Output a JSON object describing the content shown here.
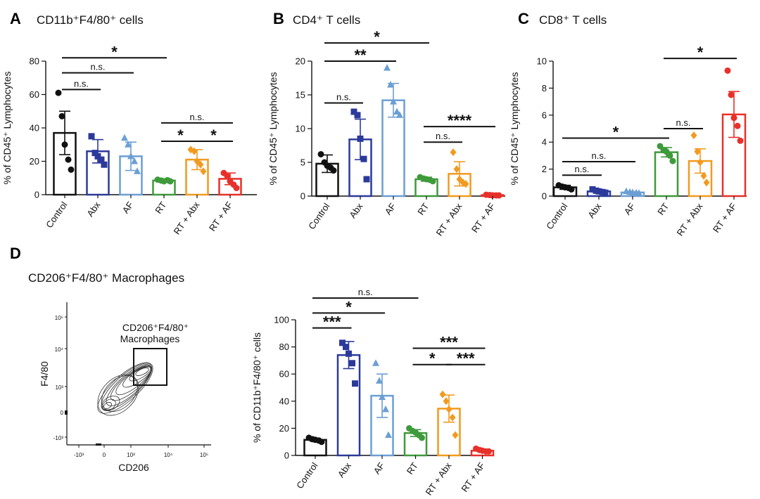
{
  "colors": {
    "Control": "#111111",
    "Abx": "#2b3a9a",
    "AF": "#6b9fd4",
    "RT": "#3e9a3a",
    "RT + Abx": "#f29a1f",
    "RT + AF": "#e8302a"
  },
  "chart_data": [
    {
      "id": "A",
      "panel_label": "A",
      "type": "bar",
      "title": "CD11b⁺F4/80⁺ cells",
      "ylabel": "% of CD45⁺ Lymphocytes",
      "categories": [
        "Control",
        "Abx",
        "AF",
        "RT",
        "RT + Abx",
        "RT + AF"
      ],
      "values": [
        37,
        26,
        23,
        8.5,
        21,
        9.5
      ],
      "sem": [
        13,
        7,
        8.5,
        0.8,
        6,
        3.5
      ],
      "points": [
        [
          61,
          47,
          30,
          21,
          15
        ],
        [
          35,
          25,
          23,
          21,
          18
        ],
        [
          34,
          30,
          23,
          20,
          14
        ],
        [
          9,
          8.5,
          8,
          8.7,
          8
        ],
        [
          27,
          26,
          20,
          18,
          14
        ],
        [
          13,
          11,
          8,
          6,
          4
        ]
      ],
      "ylim": [
        0,
        80
      ],
      "yticks": [
        0,
        20,
        40,
        60,
        80
      ],
      "comparisons": [
        {
          "from": 0,
          "to": 3,
          "label": "*",
          "y": 82
        },
        {
          "from": 0,
          "to": 2,
          "label": "n.s.",
          "y": 73
        },
        {
          "from": 0,
          "to": 1,
          "label": "n.s.",
          "y": 63
        },
        {
          "from": 3,
          "to": 5,
          "label": "n.s.",
          "y": 43
        },
        {
          "from": 3,
          "to": 4,
          "label": "*",
          "y": 32
        },
        {
          "from": 4,
          "to": 5,
          "label": "*",
          "y": 32
        }
      ]
    },
    {
      "id": "B",
      "panel_label": "B",
      "type": "bar",
      "title": "CD4⁺ T cells",
      "ylabel": "% of CD45⁺ Lymphocytes",
      "categories": [
        "Control",
        "Abx",
        "AF",
        "RT",
        "RT + Abx",
        "RT + AF"
      ],
      "values": [
        4.8,
        8.4,
        14.2,
        2.5,
        3.3,
        0.15
      ],
      "sem": [
        1.3,
        3.0,
        2.5,
        0.3,
        1.8,
        0.05
      ],
      "points": [
        [
          6.2,
          5.0,
          4.5,
          4.2,
          3.8
        ],
        [
          12.5,
          12.0,
          8.5,
          5.5,
          2.5
        ],
        [
          19.0,
          16.5,
          14.0,
          12.5,
          12.0
        ],
        [
          2.8,
          2.6,
          2.5,
          2.4,
          2.2
        ],
        [
          6.5,
          4.0,
          2.5,
          2.0,
          1.8
        ],
        [
          0.2,
          0.15,
          0.12,
          0.1,
          0.1
        ]
      ],
      "ylim": [
        0,
        20
      ],
      "yticks": [
        0,
        5,
        10,
        15,
        20
      ],
      "comparisons": [
        {
          "from": 0,
          "to": 3,
          "label": "*",
          "y": 22.7
        },
        {
          "from": 0,
          "to": 2,
          "label": "**",
          "y": 20.0
        },
        {
          "from": 0,
          "to": 1,
          "label": "n.s.",
          "y": 13.8
        },
        {
          "from": 3,
          "to": 5,
          "label": "****",
          "y": 10.3
        },
        {
          "from": 3,
          "to": 4,
          "label": "n.s.",
          "y": 8.0
        }
      ]
    },
    {
      "id": "C",
      "panel_label": "C",
      "type": "bar",
      "title": "CD8⁺ T cells",
      "ylabel": "% of CD45⁺ Lymphocytes",
      "categories": [
        "Control",
        "Abx",
        "AF",
        "RT",
        "RT + Abx",
        "RT + AF"
      ],
      "values": [
        0.65,
        0.35,
        0.27,
        3.25,
        2.6,
        6.05
      ],
      "sem": [
        0.15,
        0.08,
        0.05,
        0.35,
        0.9,
        1.7
      ],
      "points": [
        [
          0.8,
          0.7,
          0.65,
          0.6,
          0.5
        ],
        [
          0.5,
          0.4,
          0.35,
          0.3,
          0.25
        ],
        [
          0.35,
          0.3,
          0.27,
          0.25,
          0.22
        ],
        [
          3.7,
          3.4,
          3.3,
          3.0,
          2.6
        ],
        [
          4.5,
          3.3,
          2.5,
          1.5,
          1.0
        ],
        [
          9.3,
          7.5,
          5.8,
          5.2,
          4.1
        ]
      ],
      "ylim": [
        0,
        10
      ],
      "yticks": [
        0,
        2,
        4,
        6,
        8,
        10
      ],
      "comparisons": [
        {
          "from": 3,
          "to": 5,
          "label": "*",
          "y": 10.2
        },
        {
          "from": 0,
          "to": 3,
          "label": "*",
          "y": 4.3
        },
        {
          "from": 3,
          "to": 4,
          "label": "n.s.",
          "y": 5.0
        },
        {
          "from": 0,
          "to": 2,
          "label": "n.s.",
          "y": 2.55
        },
        {
          "from": 0,
          "to": 1,
          "label": "n.s.",
          "y": 1.55
        }
      ]
    },
    {
      "id": "D",
      "panel_label": "",
      "type": "bar",
      "title": "",
      "ylabel": "% of CD11b⁺F4/80⁺ cells",
      "categories": [
        "Control",
        "Abx",
        "AF",
        "RT",
        "RT + Abx",
        "RT + AF"
      ],
      "values": [
        11.5,
        74,
        44,
        16.5,
        34.5,
        3.5
      ],
      "sem": [
        1.0,
        10,
        16,
        2.5,
        10,
        0.5
      ],
      "points": [
        [
          13,
          12,
          11.5,
          11,
          10
        ],
        [
          83,
          80,
          75,
          68,
          53
        ],
        [
          68,
          55,
          43,
          34,
          15
        ],
        [
          20,
          18,
          17,
          15,
          13
        ],
        [
          45,
          40,
          34,
          28,
          15
        ],
        [
          5,
          4,
          3.5,
          3,
          3
        ]
      ],
      "ylim": [
        0,
        100
      ],
      "yticks": [
        0,
        20,
        40,
        60,
        80,
        100
      ],
      "comparisons": [
        {
          "from": 0,
          "to": 3,
          "label": "n.s.",
          "y": 116
        },
        {
          "from": 0,
          "to": 2,
          "label": "*",
          "y": 105
        },
        {
          "from": 0,
          "to": 1,
          "label": "***",
          "y": 94
        },
        {
          "from": 3,
          "to": 5,
          "label": "***",
          "y": 79
        },
        {
          "from": 3,
          "to": 4,
          "label": "*",
          "y": 67
        },
        {
          "from": 4,
          "to": 5,
          "label": "***",
          "y": 67
        }
      ]
    }
  ],
  "panel_d": {
    "label": "D",
    "title": "CD206⁺F4/80⁺ Macrophages",
    "flow": {
      "ylabel": "F4/80",
      "xlabel": "CD206",
      "gate_label_line1": "CD206⁺F4/80⁺",
      "gate_label_line2": "Macrophages",
      "yticks": [
        "10⁵",
        "10⁴",
        "10³",
        "0",
        "-10³"
      ],
      "xticks": [
        "-10³",
        "0",
        "10³",
        "10⁴",
        "10⁵"
      ]
    }
  }
}
